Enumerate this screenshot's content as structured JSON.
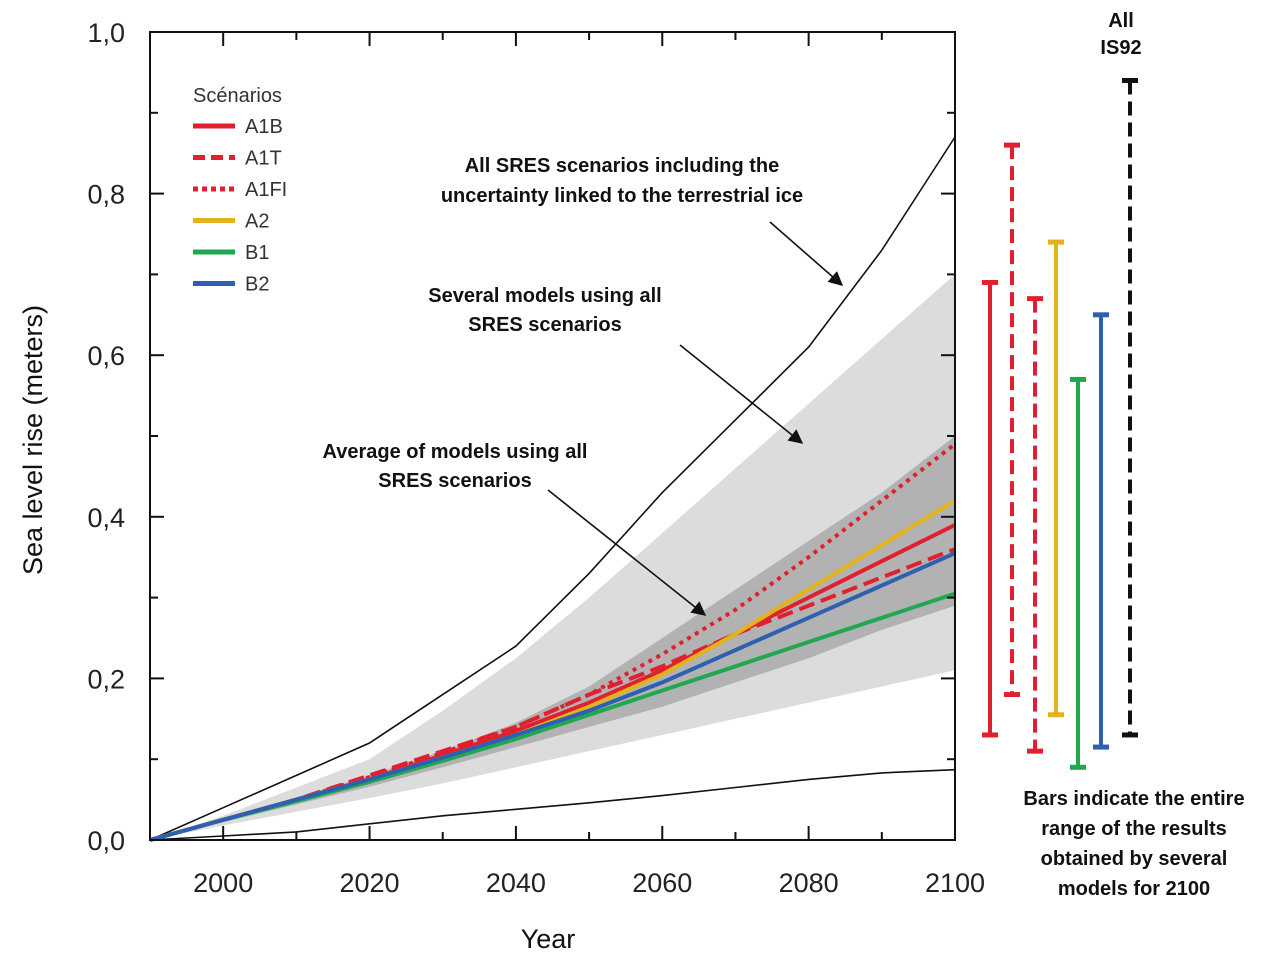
{
  "chart_data": {
    "type": "line",
    "title": "",
    "xlabel": "Year",
    "ylabel": "Sea level rise (meters)",
    "xlim": [
      1990,
      2100
    ],
    "ylim": [
      0.0,
      1.0
    ],
    "x_ticks": [
      2000,
      2020,
      2040,
      2060,
      2080,
      2100
    ],
    "y_ticks": [
      0.0,
      0.2,
      0.4,
      0.6,
      0.8,
      1.0
    ],
    "y_tick_labels": [
      "0,0",
      "0,2",
      "0,4",
      "0,6",
      "0,8",
      "1,0"
    ],
    "legend_title": "Scénarios",
    "legend_position": "top-left",
    "x": [
      1990,
      2000,
      2010,
      2020,
      2030,
      2040,
      2050,
      2060,
      2070,
      2080,
      2090,
      2100
    ],
    "series": [
      {
        "name": "A1B",
        "color": "#e0202e",
        "style": "solid",
        "values": [
          0.0,
          0.025,
          0.05,
          0.075,
          0.105,
          0.135,
          0.17,
          0.21,
          0.255,
          0.3,
          0.345,
          0.39
        ]
      },
      {
        "name": "A1T",
        "color": "#e0202e",
        "style": "dashed",
        "values": [
          0.0,
          0.025,
          0.05,
          0.08,
          0.11,
          0.14,
          0.18,
          0.215,
          0.255,
          0.29,
          0.325,
          0.36
        ]
      },
      {
        "name": "A1FI",
        "color": "#e0202e",
        "style": "dotted",
        "values": [
          0.0,
          0.025,
          0.05,
          0.078,
          0.108,
          0.14,
          0.18,
          0.23,
          0.285,
          0.35,
          0.42,
          0.49
        ]
      },
      {
        "name": "A2",
        "color": "#e3b31b",
        "style": "solid",
        "values": [
          0.0,
          0.025,
          0.05,
          0.075,
          0.102,
          0.13,
          0.165,
          0.205,
          0.255,
          0.31,
          0.365,
          0.42
        ]
      },
      {
        "name": "B1",
        "color": "#1fa84f",
        "style": "solid",
        "values": [
          0.0,
          0.025,
          0.048,
          0.072,
          0.098,
          0.125,
          0.155,
          0.185,
          0.215,
          0.245,
          0.275,
          0.305
        ]
      },
      {
        "name": "B2",
        "color": "#2f5fb0",
        "style": "solid",
        "values": [
          0.0,
          0.025,
          0.05,
          0.075,
          0.102,
          0.13,
          0.16,
          0.195,
          0.235,
          0.275,
          0.315,
          0.355
        ]
      }
    ],
    "envelope_all_sres_with_land_ice": {
      "upper": [
        0.0,
        0.04,
        0.08,
        0.12,
        0.18,
        0.24,
        0.33,
        0.43,
        0.52,
        0.61,
        0.73,
        0.87
      ],
      "lower": [
        0.0,
        0.005,
        0.01,
        0.02,
        0.03,
        0.038,
        0.046,
        0.055,
        0.065,
        0.075,
        0.083,
        0.087
      ]
    },
    "band_several_models": {
      "upper": [
        0.0,
        0.03,
        0.065,
        0.1,
        0.16,
        0.225,
        0.3,
        0.38,
        0.46,
        0.54,
        0.62,
        0.7
      ],
      "lower": [
        0.0,
        0.018,
        0.035,
        0.052,
        0.07,
        0.09,
        0.11,
        0.13,
        0.15,
        0.17,
        0.19,
        0.21
      ]
    },
    "band_model_average": {
      "upper": [
        0.0,
        0.026,
        0.052,
        0.08,
        0.11,
        0.145,
        0.19,
        0.25,
        0.31,
        0.37,
        0.43,
        0.5
      ],
      "lower": [
        0.0,
        0.022,
        0.044,
        0.066,
        0.09,
        0.115,
        0.14,
        0.165,
        0.195,
        0.225,
        0.26,
        0.29
      ]
    },
    "range_bars_2100": [
      {
        "name": "A1B",
        "color": "#e0202e",
        "style": "solid",
        "low": 0.13,
        "high": 0.69
      },
      {
        "name": "A1T",
        "color": "#e0202e",
        "style": "dashed",
        "low": 0.18,
        "high": 0.86
      },
      {
        "name": "A1FI",
        "color": "#e0202e",
        "style": "dashed",
        "low": 0.11,
        "high": 0.67
      },
      {
        "name": "A2",
        "color": "#e3b31b",
        "style": "solid",
        "low": 0.155,
        "high": 0.74
      },
      {
        "name": "B1",
        "color": "#1fa84f",
        "style": "solid",
        "low": 0.09,
        "high": 0.57
      },
      {
        "name": "B2",
        "color": "#2f5fb0",
        "style": "solid",
        "low": 0.115,
        "high": 0.65
      },
      {
        "name": "All IS92",
        "color": "#111111",
        "style": "dashed",
        "low": 0.13,
        "high": 0.94
      }
    ],
    "annotations": {
      "all_sres": [
        "All SRES scenarios including the",
        "uncertainty linked to the terrestrial ice"
      ],
      "several_models": [
        "Several models using all",
        "SRES scenarios"
      ],
      "average_models": [
        "Average of models using all",
        "SRES scenarios"
      ],
      "all_is92": [
        "All",
        "IS92"
      ],
      "bars_note": [
        "Bars indicate the entire",
        "range of the results",
        "obtained by several",
        "models for 2100"
      ]
    },
    "colors": {
      "band_light": "#dcdcdc",
      "band_dark": "#b2b2b2",
      "envelope_line": "#111111",
      "axis": "#111111"
    }
  }
}
